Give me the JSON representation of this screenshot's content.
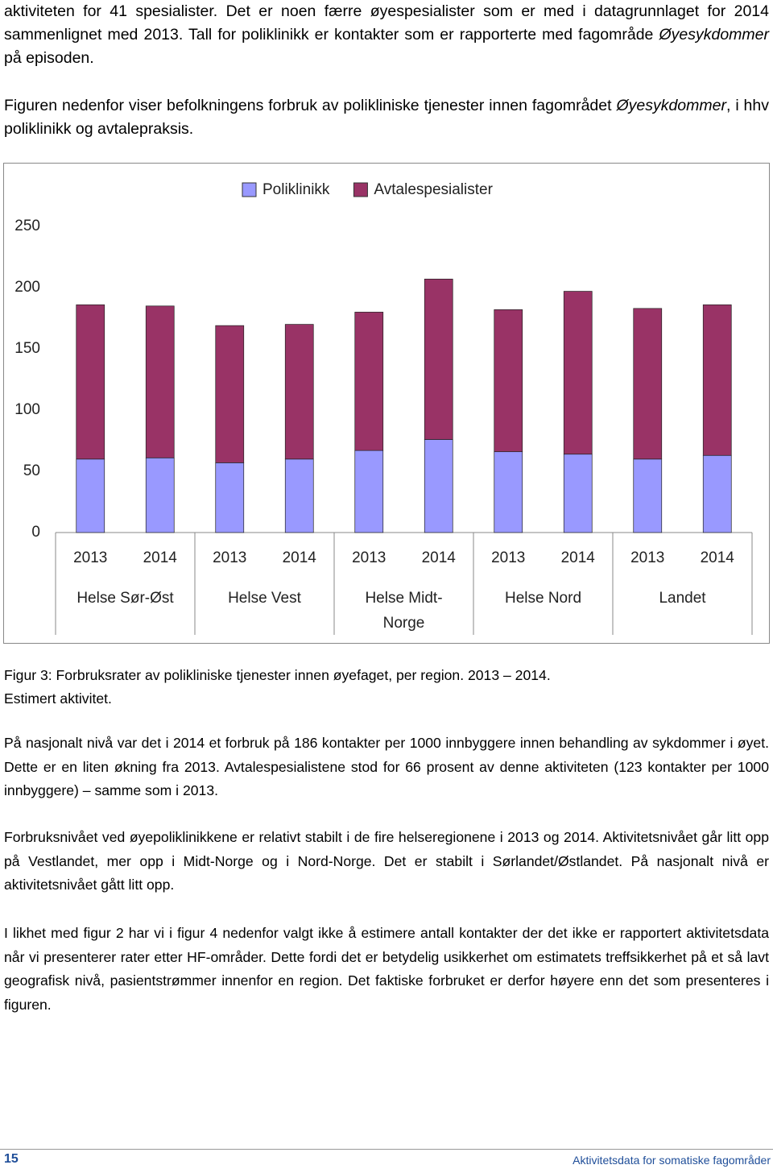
{
  "paragraphs_top": [
    [
      "aktiviteten for 41 spesialister. Det er noen færre øyespesialister som er med i datagrunnlaget for 2014 sammenlignet med 2013. Tall for poliklinikk er kontakter som er rapporterte med fagområde ",
      {
        "text": "Øyesykdommer",
        "italic": true
      },
      " på episoden."
    ],
    [
      "Figuren nedenfor viser befolkningens forbruk av polikliniske tjenester innen fagområdet ",
      {
        "text": "Øyesykdommer",
        "italic": true
      },
      ", i hhv poliklinikk og avtalepraksis."
    ]
  ],
  "chart_data": {
    "type": "bar",
    "stacked": true,
    "categories": [
      "2013",
      "2014",
      "2013",
      "2014",
      "2013",
      "2014",
      "2013",
      "2014",
      "2013",
      "2014"
    ],
    "groups": [
      "Helse Sør-Øst",
      "Helse Vest",
      "Helse Midt-Norge",
      "Helse Nord",
      "Landet"
    ],
    "series": [
      {
        "name": "Poliklinikk",
        "color": "#9999ff",
        "values": [
          60,
          61,
          57,
          60,
          67,
          76,
          66,
          64,
          60,
          63
        ]
      },
      {
        "name": "Avtalespesialister",
        "color": "#993366",
        "values": [
          126,
          124,
          112,
          110,
          113,
          131,
          116,
          133,
          123,
          123
        ]
      }
    ],
    "ylim": [
      0,
      250
    ],
    "yticks": [
      0,
      50,
      100,
      150,
      200,
      250
    ],
    "grid": false,
    "legend": "top"
  },
  "caption": [
    "Figur 3: Forbruksrater av polikliniske tjenester innen øyefaget, per region. 2013 – 2014.",
    "Estimert aktivitet."
  ],
  "paragraphs_bottom": [
    "På nasjonalt nivå var det i 2014 et forbruk på 186 kontakter per 1000 innbyggere innen behandling av sykdommer i øyet. Dette er en liten økning fra 2013. Avtalespesialistene stod for 66 prosent av denne aktiviteten (123 kontakter per 1000 innbyggere) – samme som i 2013.",
    "Forbruksnivået ved øyepoliklinikkene er relativt stabilt i de fire helseregionene i 2013 og 2014. Aktivitetsnivået går litt opp på Vestlandet, mer opp i Midt-Norge og i Nord-Norge. Det er stabilt i Sørlandet/Østlandet. På nasjonalt nivå er aktivitetsnivået gått litt opp.",
    "I likhet med figur 2 har vi i figur 4 nedenfor valgt ikke å estimere antall kontakter der det ikke er rapportert aktivitetsdata når vi presenterer rater etter HF-områder. Dette fordi det er betydelig usikkerhet om estimatets treffsikkerhet på et så lavt geografisk nivå, pasientstrømmer innenfor en region. Det faktiske forbruket er derfor høyere enn det som presenteres i figuren."
  ],
  "footer": {
    "page_number": "15",
    "title": "Aktivitetsdata for somatiske fagområder"
  }
}
